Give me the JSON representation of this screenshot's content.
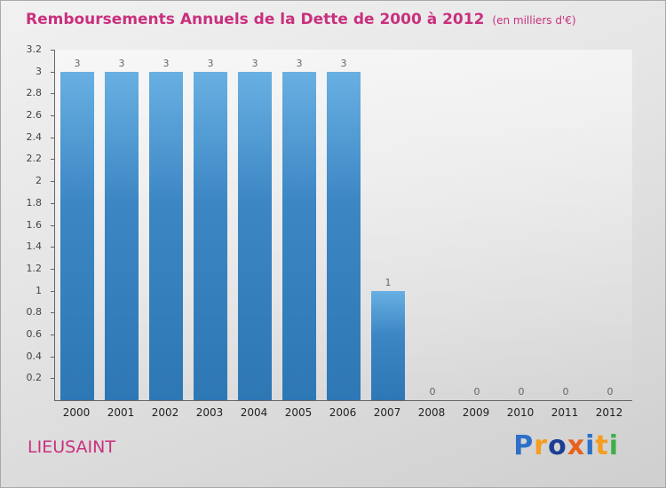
{
  "colors": {
    "accent": "#c9307e",
    "axis": "#666666",
    "bar_gradient": [
      "#68b0e2",
      "#3c86c4",
      "#2e77b5"
    ],
    "value_label": "#666666"
  },
  "header": {
    "title": "Remboursements Annuels de la Dette de 2000 à 2012",
    "subtitle": "(en milliers d'€)"
  },
  "chart_data": {
    "type": "bar",
    "title": "Remboursements Annuels de la Dette de 2000 à 2012",
    "subtitle": "(en milliers d'€)",
    "categories": [
      "2000",
      "2001",
      "2002",
      "2003",
      "2004",
      "2005",
      "2006",
      "2007",
      "2008",
      "2009",
      "2010",
      "2011",
      "2012"
    ],
    "values": [
      3,
      3,
      3,
      3,
      3,
      3,
      3,
      1,
      0,
      0,
      0,
      0,
      0
    ],
    "xlabel": "",
    "ylabel": "",
    "ylim": [
      0,
      3.2
    ],
    "ytick_step": 0.2,
    "yticks": [
      "3.2",
      "3",
      "2.8",
      "2.6",
      "2.4",
      "2.2",
      "2",
      "1.8",
      "1.6",
      "1.4",
      "1.2",
      "1",
      "0.8",
      "0.6",
      "0.4",
      "0.2"
    ],
    "grid": false,
    "legend": false,
    "bar_labels_shown": true
  },
  "footer": {
    "location": "LIEUSAINT",
    "logo": {
      "text": "Proxiti",
      "letters": [
        {
          "ch": "P",
          "color": "#2e6fc8"
        },
        {
          "ch": "r",
          "color": "#f59d1e"
        },
        {
          "ch": "o",
          "color": "#1d3e93"
        },
        {
          "ch": "x",
          "color": "#e8601c"
        },
        {
          "ch": "i",
          "color": "#2e6fc8"
        },
        {
          "ch": "t",
          "color": "#f59d1e"
        },
        {
          "ch": "i",
          "color": "#3fae49"
        }
      ]
    }
  }
}
